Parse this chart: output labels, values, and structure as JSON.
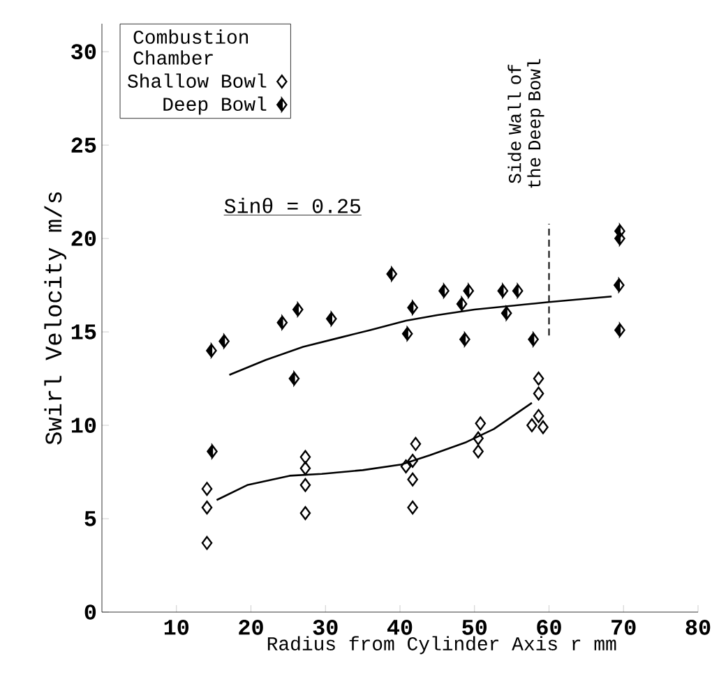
{
  "chart_data": {
    "type": "scatter",
    "xlabel": "Radius from Cylinder Axis r mm",
    "ylabel": "Swirl Velocity m/s",
    "legend_title": "Combustion Chamber",
    "legend": "top left",
    "grid": false,
    "xlim": [
      0,
      80
    ],
    "ylim": [
      0,
      31.5
    ],
    "xticks": [
      10,
      20,
      30,
      40,
      50,
      60,
      70,
      80
    ],
    "yticks": [
      0,
      5,
      10,
      15,
      20,
      25,
      30
    ],
    "series": [
      {
        "name": "Shallow Bowl",
        "marker": "diamond",
        "color": "#000000",
        "x": [
          14.1,
          14.1,
          14.1,
          27.3,
          27.3,
          27.3,
          27.3,
          42.1,
          41.7,
          40.8,
          41.7,
          41.7,
          50.8,
          50.5,
          50.5,
          58.6,
          58.6,
          58.6,
          57.7,
          59.2
        ],
        "values": [
          6.6,
          5.6,
          3.7,
          8.3,
          7.7,
          6.8,
          5.3,
          9.0,
          8.1,
          7.8,
          7.1,
          5.6,
          10.1,
          9.3,
          8.6,
          12.5,
          11.7,
          10.5,
          10.0,
          9.9
        ]
      },
      {
        "name": "Deep Bowl",
        "marker": "diamond",
        "color": "#000000",
        "x": [
          14.7,
          16.4,
          14.8,
          24.2,
          26.3,
          25.8,
          30.8,
          38.9,
          41.7,
          41.0,
          45.9,
          49.2,
          48.3,
          48.7,
          53.8,
          55.8,
          54.3,
          57.9,
          69.5,
          69.5,
          69.4,
          69.5
        ],
        "values": [
          14.0,
          14.5,
          8.6,
          15.5,
          16.2,
          12.5,
          15.7,
          18.1,
          16.3,
          14.9,
          17.2,
          17.2,
          16.5,
          14.6,
          17.2,
          17.2,
          16.0,
          14.6,
          20.4,
          20.0,
          17.5,
          15.1
        ]
      },
      {
        "type": "line",
        "color": "#000000",
        "x": [
          15.4,
          19.5,
          25.2,
          29.5,
          35,
          40.2,
          44,
          48.9,
          52.6,
          57.7
        ],
        "values": [
          6.0,
          6.8,
          7.3,
          7.4,
          7.6,
          7.9,
          8.4,
          9.1,
          9.8,
          11.2
        ]
      },
      {
        "type": "line",
        "color": "#000000",
        "x": [
          17.1,
          22,
          27,
          32,
          36,
          40.8,
          45,
          50,
          55,
          60,
          68.4
        ],
        "values": [
          12.7,
          13.5,
          14.2,
          14.7,
          15.1,
          15.6,
          15.9,
          16.2,
          16.4,
          16.6,
          16.9
        ]
      }
    ],
    "ref_lines": [
      {
        "axis": "x",
        "value": 60,
        "label": "Side Wall of the Deep Bowl",
        "line_style": "dashed"
      }
    ],
    "annotations": [
      "Sinθ = 0.25"
    ]
  }
}
